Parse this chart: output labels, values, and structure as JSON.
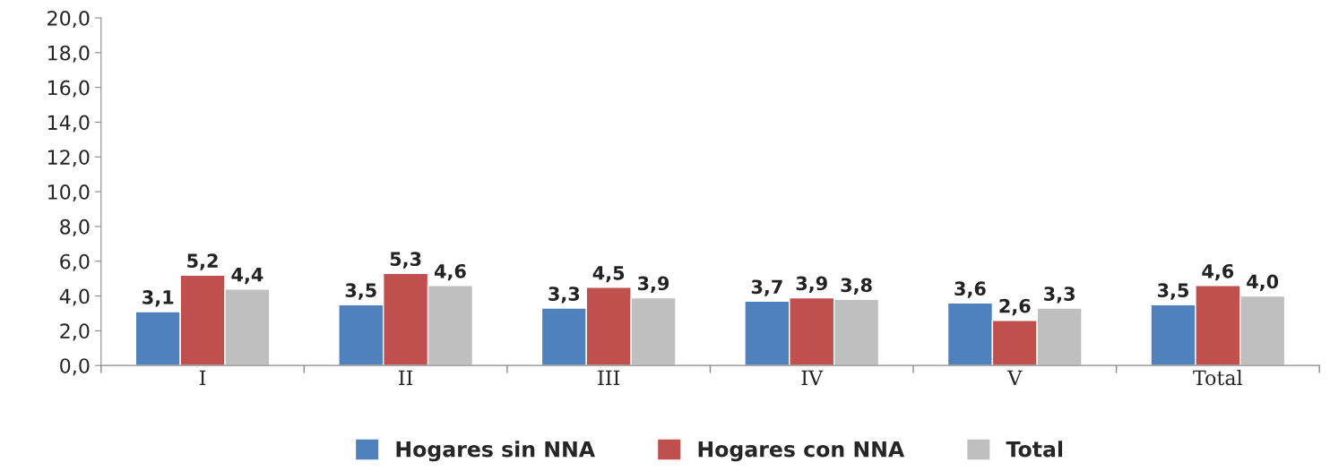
{
  "chart_data": {
    "type": "bar",
    "categories": [
      "I",
      "II",
      "III",
      "IV",
      "V",
      "Total"
    ],
    "series": [
      {
        "name": "Hogares sin NNA",
        "color": "#4f81bd",
        "values": [
          3.1,
          3.5,
          3.3,
          3.7,
          3.6,
          3.5
        ],
        "value_labels": [
          "3,1",
          "3,5",
          "3,3",
          "3,7",
          "3,6",
          "3,5"
        ]
      },
      {
        "name": "Hogares con NNA",
        "color": "#c0504d",
        "values": [
          5.2,
          5.3,
          4.5,
          3.9,
          2.6,
          4.6
        ],
        "value_labels": [
          "5,2",
          "5,3",
          "4,5",
          "3,9",
          "2,6",
          "4,6"
        ]
      },
      {
        "name": "Total",
        "color": "#bfbfbf",
        "values": [
          4.4,
          4.6,
          3.9,
          3.8,
          3.3,
          4.0
        ],
        "value_labels": [
          "4,4",
          "4,6",
          "3,9",
          "3,8",
          "3,3",
          "4,0"
        ]
      }
    ],
    "ylim": [
      0,
      20
    ],
    "yticks": [
      {
        "value": 0,
        "label": "0,0"
      },
      {
        "value": 2,
        "label": "2,0"
      },
      {
        "value": 4,
        "label": "4,0"
      },
      {
        "value": 6,
        "label": "6,0"
      },
      {
        "value": 8,
        "label": "8,0"
      },
      {
        "value": 10,
        "label": "10,0"
      },
      {
        "value": 12,
        "label": "12,0"
      },
      {
        "value": 14,
        "label": "14,0"
      },
      {
        "value": 16,
        "label": "16,0"
      },
      {
        "value": 18,
        "label": "18,0"
      },
      {
        "value": 20,
        "label": "20,0"
      }
    ],
    "grid": false,
    "legend": "bottom"
  }
}
